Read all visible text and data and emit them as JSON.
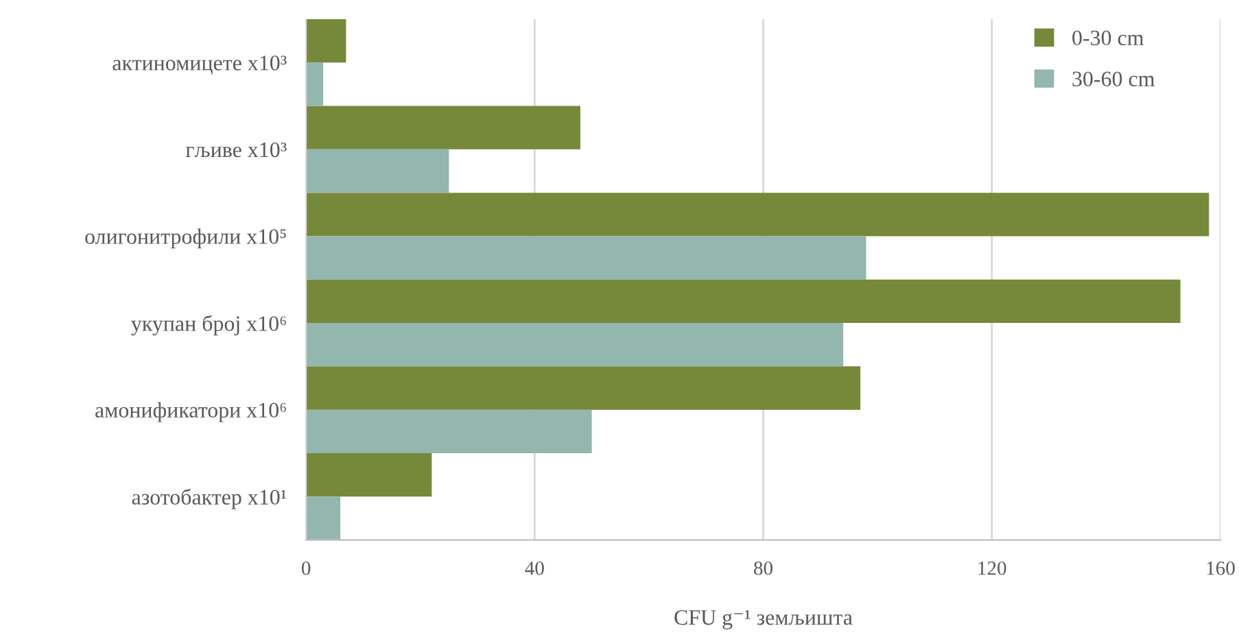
{
  "chart_data": {
    "type": "bar",
    "orientation": "horizontal",
    "categories": [
      "актиномицете x10³",
      "гљиве x10³",
      "олигонитрофили x10⁵",
      "укупан број x10⁶",
      "амонификатори x10⁶",
      "азотобактер x10¹"
    ],
    "series": [
      {
        "name": "0-30 cm",
        "color": "#76883a",
        "values": [
          7,
          48,
          158,
          153,
          97,
          22
        ]
      },
      {
        "name": "30-60 cm",
        "color": "#93b6ae",
        "values": [
          3,
          25,
          98,
          94,
          50,
          6
        ]
      }
    ],
    "xlabel": "CFU g⁻¹ земљишта",
    "xlim": [
      0,
      160
    ],
    "xticks": [
      0,
      40,
      80,
      120,
      160
    ],
    "grid": "x",
    "legend": "top right"
  }
}
